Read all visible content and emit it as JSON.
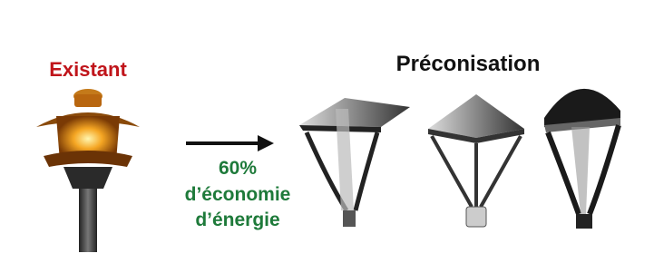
{
  "existing": {
    "label": "Existant"
  },
  "proposal": {
    "label": "Préconisation"
  },
  "savings": {
    "amount": "60%",
    "line1": "d’économie",
    "line2": "d’énergie"
  }
}
